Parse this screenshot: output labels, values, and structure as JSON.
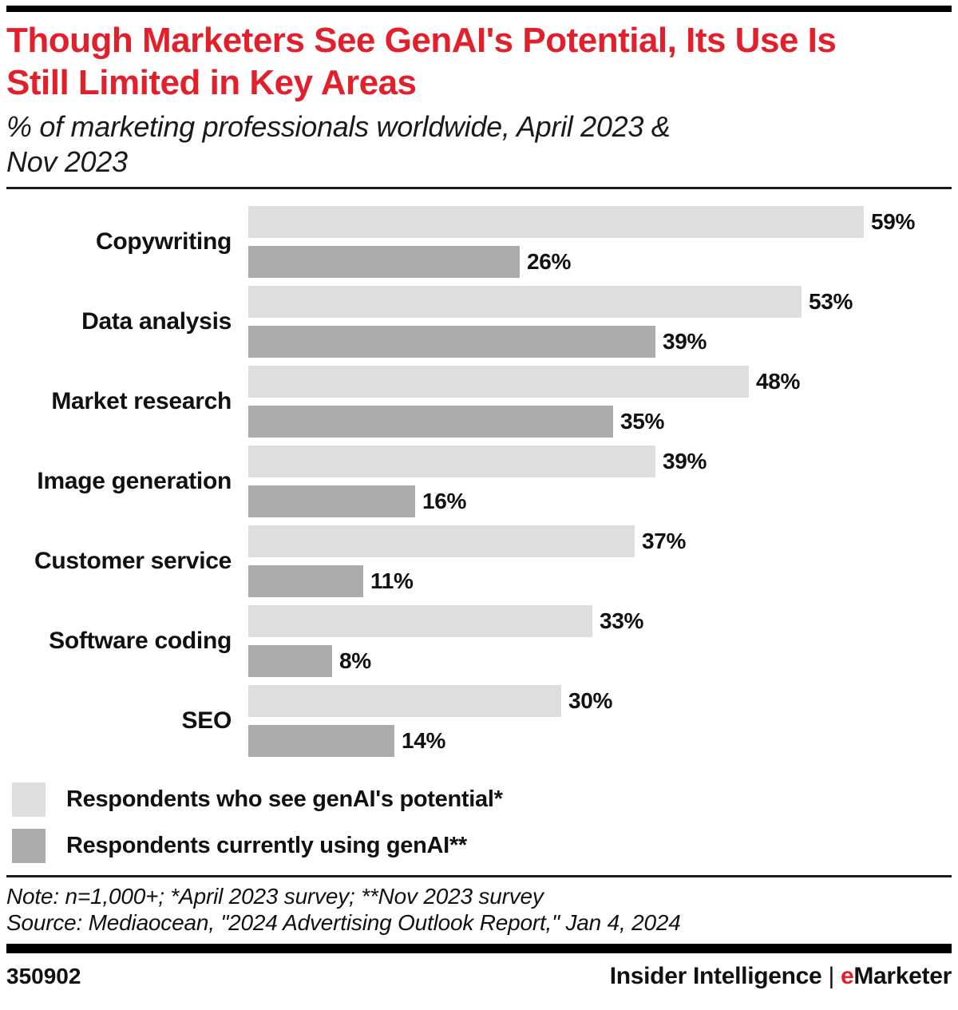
{
  "header": {
    "title_lines": [
      "Though Marketers See GenAI's Potential, Its Use Is",
      "Still Limited in Key Areas"
    ],
    "subtitle_lines": [
      "% of marketing professionals worldwide, April 2023 &",
      "Nov 2023"
    ]
  },
  "chart_data": {
    "type": "bar",
    "orientation": "horizontal",
    "title": "Though Marketers See GenAI's Potential, Its Use Is Still Limited in Key Areas",
    "subtitle": "% of marketing professionals worldwide, April 2023 & Nov 2023",
    "categories": [
      "Copywriting",
      "Data analysis",
      "Market research",
      "Image generation",
      "Customer service",
      "Software coding",
      "SEO"
    ],
    "series": [
      {
        "name": "Respondents who see genAI's potential*",
        "color": "#dedede",
        "values": [
          59,
          53,
          48,
          39,
          37,
          33,
          30
        ]
      },
      {
        "name": "Respondents currently using genAI**",
        "color": "#ababab",
        "values": [
          26,
          39,
          35,
          16,
          11,
          8,
          14
        ]
      }
    ],
    "value_suffix": "%",
    "xlim": [
      0,
      59
    ],
    "grid": false,
    "legend_position": "bottom",
    "data_labels": true
  },
  "footnotes": {
    "note": "Note: n=1,000+; *April 2023 survey; **Nov 2023 survey",
    "source": "Source: Mediaocean, \"2024 Advertising Outlook Report,\" Jan 4, 2024"
  },
  "footer": {
    "chart_id": "350902",
    "brand_left": "Insider Intelligence",
    "separator": "|",
    "brand_red_letter": "e",
    "brand_rest": "Marketer"
  },
  "colors": {
    "title_red": "#e2202c",
    "brand_red": "#e2202c",
    "bar_light": "#dedede",
    "bar_dark": "#ababab",
    "rule_black": "#000000",
    "text": "#111111"
  }
}
